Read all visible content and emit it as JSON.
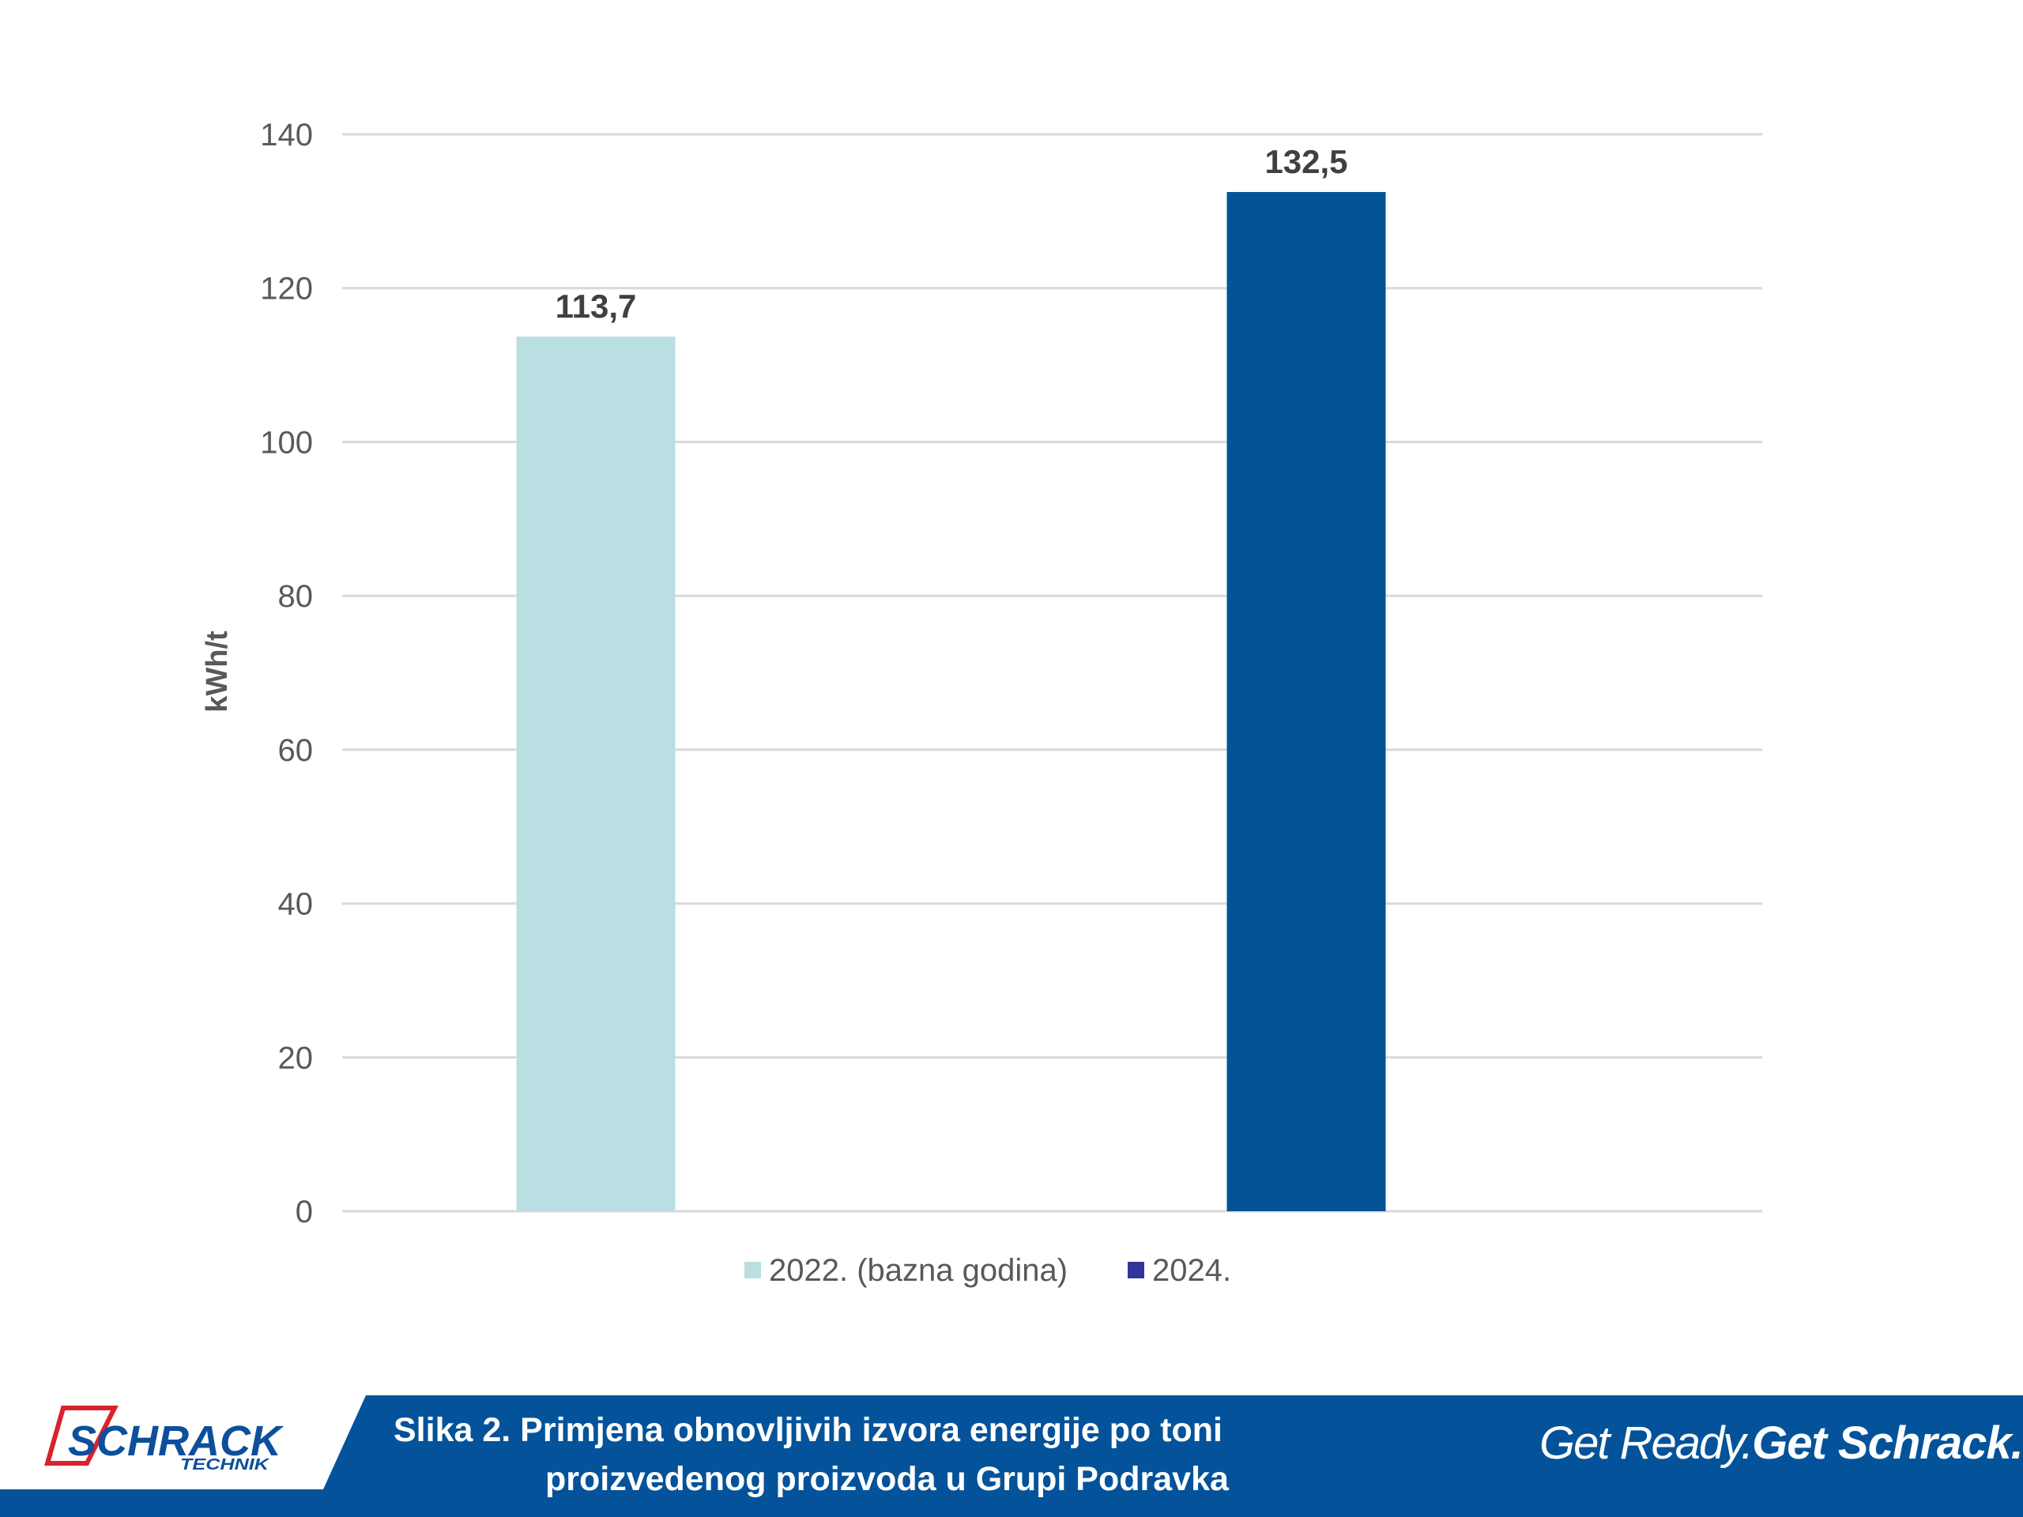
{
  "chart_data": {
    "type": "bar",
    "title": "",
    "xlabel": "",
    "ylabel": "kWh/t",
    "ylim": [
      0,
      140
    ],
    "yticks": [
      0,
      20,
      40,
      60,
      80,
      100,
      120,
      140
    ],
    "ytick_labels": [
      "0",
      "20",
      "40",
      "60",
      "80",
      "100",
      "120",
      "140"
    ],
    "grid": true,
    "legend_position": "bottom",
    "series": [
      {
        "name": "2022. (bazna godina)",
        "values": [
          113.7
        ],
        "value_labels": [
          "113,7"
        ],
        "color": "#badfe2"
      },
      {
        "name": "2024.",
        "values": [
          132.5
        ],
        "value_labels": [
          "132,5"
        ],
        "color": "#045396",
        "legend_color": "#32349a"
      }
    ]
  },
  "footer": {
    "logo": {
      "brand": "SCHRACK",
      "sub": "TECHNIK"
    },
    "caption": {
      "line1": "Slika 2. Primjena obnovljivih izvora energije po toni",
      "line2": "proizvedenog proizvoda u Grupi Podravka"
    },
    "tagline": {
      "light": "Get Ready.",
      "strong": "Get Schrack."
    },
    "colors": {
      "band": "#04539a",
      "logo_red": "#d7232b",
      "logo_blue": "#0e4f9c"
    }
  }
}
